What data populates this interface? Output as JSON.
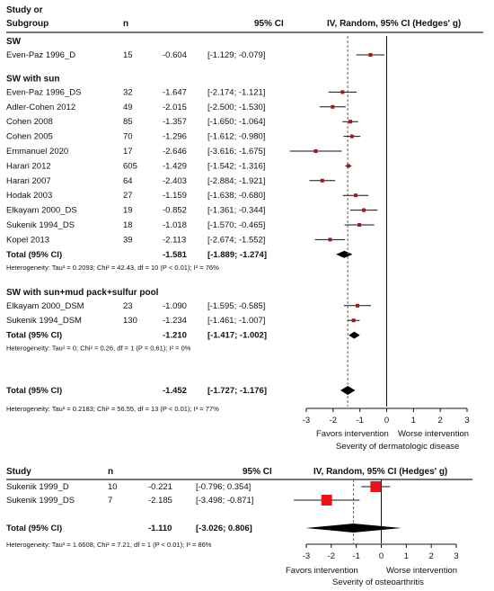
{
  "chart_data": [
    {
      "type": "forest",
      "header": {
        "col_study": [
          "Study or",
          "Subgroup"
        ],
        "col_n": "n",
        "col_ci": "95% CI",
        "plot_title": "IV, Random, 95% CI (Hedges' g)"
      },
      "xlim": [
        -3,
        3
      ],
      "ticks": [
        "-3",
        "-2",
        "-1",
        "0",
        "1",
        "2",
        "3"
      ],
      "tick_values": [
        -3,
        -2,
        -1,
        0,
        1,
        2,
        3
      ],
      "pooled_line": -1.452,
      "xlabel_left": "Favors intervention",
      "xlabel_right": "Worse intervention",
      "xlabel": "Severity of dermatologic disease",
      "subgroups": [
        {
          "name": "SW",
          "studies": [
            {
              "study": "Even-Paz 1996_D",
              "n": "15",
              "g": "-0.604",
              "ci": "[-1.129; -0.079]",
              "est": -0.604,
              "lo": -1.129,
              "hi": -0.079
            }
          ]
        },
        {
          "name": "SW with sun",
          "studies": [
            {
              "study": "Even-Paz 1996_DS",
              "n": "32",
              "g": "-1.647",
              "ci": "[-2.174; -1.121]",
              "est": -1.647,
              "lo": -2.174,
              "hi": -1.121
            },
            {
              "study": "Adler-Cohen 2012",
              "n": "49",
              "g": "-2.015",
              "ci": "[-2.500; -1.530]",
              "est": -2.015,
              "lo": -2.5,
              "hi": -1.53
            },
            {
              "study": "Cohen 2008",
              "n": "85",
              "g": "-1.357",
              "ci": "[-1.650; -1.064]",
              "est": -1.357,
              "lo": -1.65,
              "hi": -1.064
            },
            {
              "study": "Cohen 2005",
              "n": "70",
              "g": "-1.296",
              "ci": "[-1.612; -0.980]",
              "est": -1.296,
              "lo": -1.612,
              "hi": -0.98
            },
            {
              "study": "Emmanuel 2020",
              "n": "17",
              "g": "-2.646",
              "ci": "[-3.616; -1.675]",
              "est": -2.646,
              "lo": -3.616,
              "hi": -1.675
            },
            {
              "study": "Harari 2012",
              "n": "605",
              "g": "-1.429",
              "ci": "[-1.542; -1.316]",
              "est": -1.429,
              "lo": -1.542,
              "hi": -1.316
            },
            {
              "study": "Harari 2007",
              "n": "64",
              "g": "-2.403",
              "ci": "[-2.884; -1.921]",
              "est": -2.403,
              "lo": -2.884,
              "hi": -1.921
            },
            {
              "study": "Hodak 2003",
              "n": "27",
              "g": "-1.159",
              "ci": "[-1.638; -0.680]",
              "est": -1.159,
              "lo": -1.638,
              "hi": -0.68
            },
            {
              "study": "Elkayam 2000_DS",
              "n": "19",
              "g": "-0.852",
              "ci": "[-1.361; -0.344]",
              "est": -0.852,
              "lo": -1.361,
              "hi": -0.344
            },
            {
              "study": "Sukenik 1994_DS",
              "n": "18",
              "g": "-1.018",
              "ci": "[-1.570; -0.465]",
              "est": -1.018,
              "lo": -1.57,
              "hi": -0.465
            },
            {
              "study": "Kopel 2013",
              "n": "39",
              "g": "-2.113",
              "ci": "[-2.674; -1.552]",
              "est": -2.113,
              "lo": -2.674,
              "hi": -1.552
            }
          ],
          "total": {
            "label": "Total (95% CI)",
            "g": "-1.581",
            "ci": "[-1.889; -1.274]",
            "est": -1.581,
            "lo": -1.889,
            "hi": -1.274
          },
          "het": "Heterogeneity: Tau² = 0.2093; Chi² = 42.43, df = 10 (P < 0.01); I² = 76%"
        },
        {
          "name": "SW with sun+mud pack+sulfur pool",
          "studies": [
            {
              "study": "Elkayam 2000_DSM",
              "n": "23",
              "g": "-1.090",
              "ci": "[-1.595; -0.585]",
              "est": -1.09,
              "lo": -1.595,
              "hi": -0.585
            },
            {
              "study": "Sukenik 1994_DSM",
              "n": "130",
              "g": "-1.234",
              "ci": "[-1.461; -1.007]",
              "est": -1.234,
              "lo": -1.461,
              "hi": -1.007
            }
          ],
          "total": {
            "label": "Total (95% CI)",
            "g": "-1.210",
            "ci": "[-1.417; -1.002]",
            "est": -1.21,
            "lo": -1.417,
            "hi": -1.002
          },
          "het": "Heterogeneity: Tau² = 0; Chi² = 0.26, df = 1 (P = 0.61); I² = 0%"
        }
      ],
      "overall": {
        "label": "Total (95% CI)",
        "g": "-1.452",
        "ci": "[-1.727; -1.176]",
        "est": -1.452,
        "lo": -1.727,
        "hi": -1.176
      },
      "overall_het": "Heterogeneity: Tau² = 0.2183; Chi² = 56.55, df = 13 (P < 0.01); I² = 77%"
    },
    {
      "type": "forest",
      "header": {
        "col_study": "Study",
        "col_n": "n",
        "col_ci": "95% CI",
        "plot_title": "IV, Random, 95% CI (Hedges' g)"
      },
      "xlim": [
        -3,
        3
      ],
      "ticks": [
        "-3",
        "-2",
        "-1",
        "0",
        "1",
        "2",
        "3"
      ],
      "tick_values": [
        -3,
        -2,
        -1,
        0,
        1,
        2,
        3
      ],
      "pooled_line": -1.11,
      "xlabel_left": "Favors intervention",
      "xlabel_right": "Worse intervention",
      "xlabel": "Severity of osteoarthritis",
      "studies": [
        {
          "study": "Sukenik 1999_D",
          "n": "10",
          "g": "-0.221",
          "ci": "[-0.796; 0.354]",
          "est": -0.221,
          "lo": -0.796,
          "hi": 0.354
        },
        {
          "study": "Sukenik 1999_DS",
          "n": "7",
          "g": "-2.185",
          "ci": "[-3.498; -0.871]",
          "est": -2.185,
          "lo": -3.498,
          "hi": -0.871
        }
      ],
      "overall": {
        "label": "Total (95% CI)",
        "g": "-1.110",
        "ci": "[-3.026; 0.806]",
        "est": -1.11,
        "lo": -3.026,
        "hi": 0.806
      },
      "overall_het": "Heterogeneity: Tau² = 1.6608; Chi² = 7.21, df = 1 (P < 0.01); I² = 86%"
    }
  ],
  "colors": {
    "marker_small": "#9b1b1b",
    "marker_large": "#e8141b",
    "ci_line": "#111111",
    "diamond": "#000000"
  }
}
